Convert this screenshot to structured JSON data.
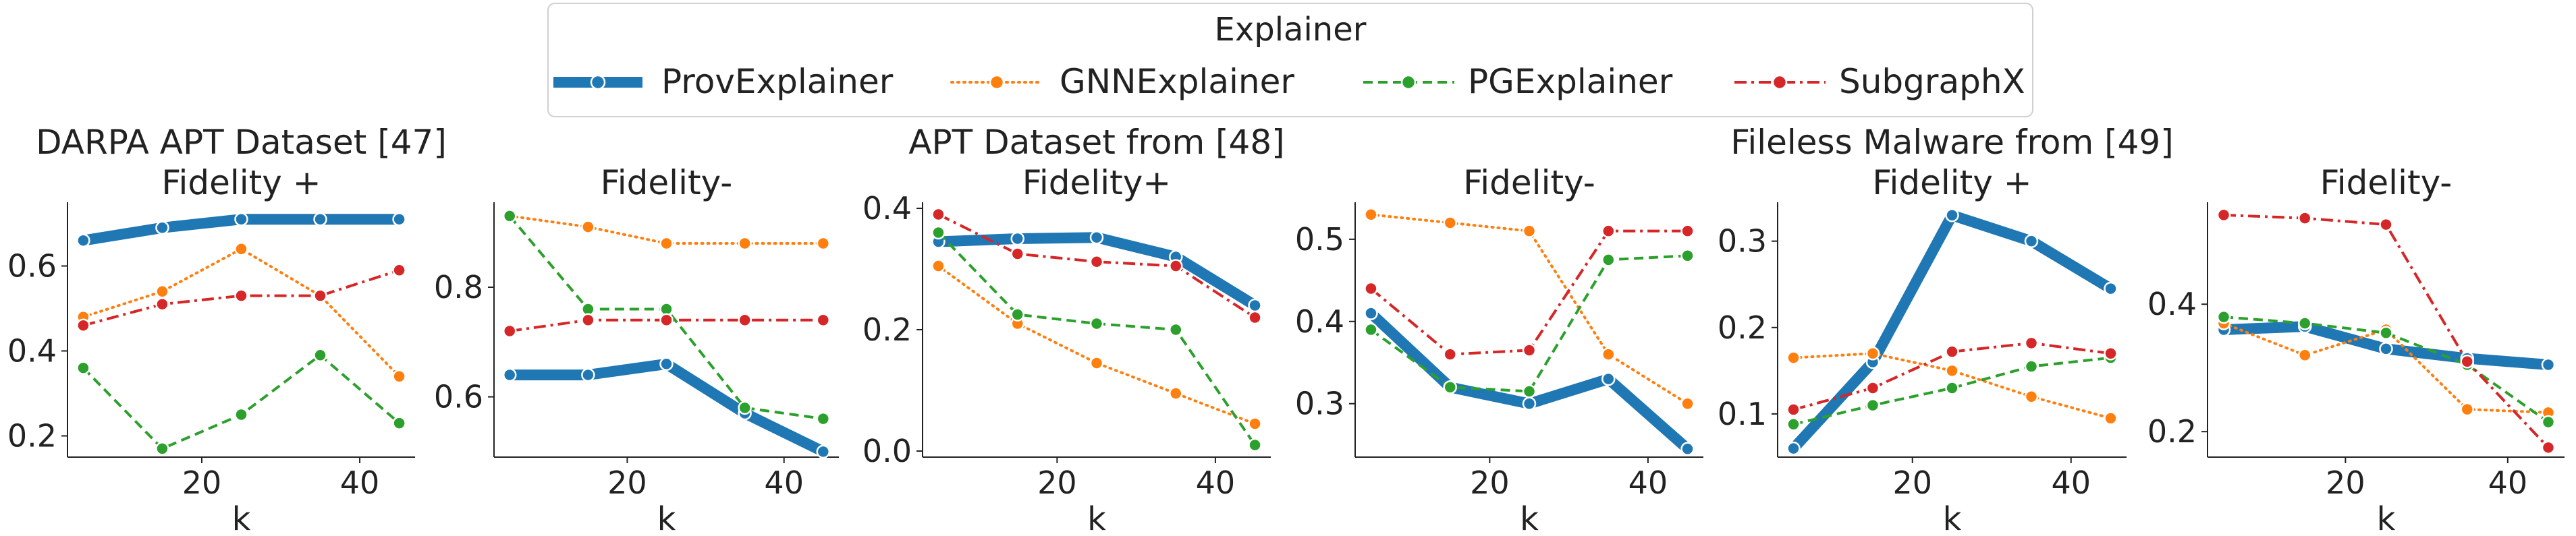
{
  "legend": {
    "title": "Explainer",
    "entries": [
      "ProvExplainer",
      "GNNExplainer",
      "PGExplainer",
      "SubgraphX"
    ]
  },
  "colors": {
    "ProvExplainer": "#1f77b4",
    "GNNExplainer": "#ff7f0e",
    "PGExplainer": "#2ca02c",
    "SubgraphX": "#d62728"
  },
  "chart_data": [
    {
      "type": "line",
      "title": "DARPA APT Dataset [47]\nFidelity +",
      "xlabel": "k",
      "ylabel": "",
      "x": [
        5,
        15,
        25,
        35,
        45
      ],
      "xlim": [
        3,
        47
      ],
      "ylim": [
        0.15,
        0.75
      ],
      "xticks": [
        20,
        40
      ],
      "yticks": [
        0.2,
        0.4,
        0.6
      ],
      "ytick_labels": [
        "0.2",
        "0.4",
        "0.6"
      ],
      "series": [
        {
          "name": "ProvExplainer",
          "values": [
            0.66,
            0.69,
            0.71,
            0.71,
            0.71
          ]
        },
        {
          "name": "GNNExplainer",
          "values": [
            0.48,
            0.54,
            0.64,
            0.53,
            0.34
          ]
        },
        {
          "name": "PGExplainer",
          "values": [
            0.36,
            0.17,
            0.25,
            0.39,
            0.23
          ]
        },
        {
          "name": "SubgraphX",
          "values": [
            0.46,
            0.51,
            0.53,
            0.53,
            0.59
          ]
        }
      ]
    },
    {
      "type": "line",
      "title": "Fidelity-",
      "xlabel": "k",
      "ylabel": "",
      "x": [
        5,
        15,
        25,
        35,
        45
      ],
      "xlim": [
        3,
        47
      ],
      "ylim": [
        0.49,
        0.955
      ],
      "xticks": [
        20,
        40
      ],
      "yticks": [
        0.6,
        0.8
      ],
      "ytick_labels": [
        "0.6",
        "0.8"
      ],
      "series": [
        {
          "name": "ProvExplainer",
          "values": [
            0.64,
            0.64,
            0.66,
            0.57,
            0.5
          ]
        },
        {
          "name": "GNNExplainer",
          "values": [
            0.93,
            0.91,
            0.88,
            0.88,
            0.88
          ]
        },
        {
          "name": "PGExplainer",
          "values": [
            0.93,
            0.76,
            0.76,
            0.58,
            0.56
          ]
        },
        {
          "name": "SubgraphX",
          "values": [
            0.72,
            0.74,
            0.74,
            0.74,
            0.74
          ]
        }
      ]
    },
    {
      "type": "line",
      "title": "APT Dataset from [48]\nFidelity+",
      "xlabel": "k",
      "ylabel": "",
      "x": [
        5,
        15,
        25,
        35,
        45
      ],
      "xlim": [
        3,
        47
      ],
      "ylim": [
        -0.01,
        0.41
      ],
      "xticks": [
        20,
        40
      ],
      "yticks": [
        0.0,
        0.2,
        0.4
      ],
      "ytick_labels": [
        "0.0",
        "0.2",
        "0.4"
      ],
      "series": [
        {
          "name": "ProvExplainer",
          "values": [
            0.345,
            0.35,
            0.352,
            0.32,
            0.24
          ]
        },
        {
          "name": "GNNExplainer",
          "values": [
            0.305,
            0.21,
            0.145,
            0.095,
            0.045
          ]
        },
        {
          "name": "PGExplainer",
          "values": [
            0.36,
            0.225,
            0.21,
            0.2,
            0.01
          ]
        },
        {
          "name": "SubgraphX",
          "values": [
            0.39,
            0.325,
            0.312,
            0.305,
            0.22
          ]
        }
      ]
    },
    {
      "type": "line",
      "title": "Fidelity-",
      "xlabel": "k",
      "ylabel": "",
      "x": [
        5,
        15,
        25,
        35,
        45
      ],
      "xlim": [
        3,
        47
      ],
      "ylim": [
        0.235,
        0.545
      ],
      "xticks": [
        20,
        40
      ],
      "yticks": [
        0.3,
        0.4,
        0.5
      ],
      "ytick_labels": [
        "0.3",
        "0.4",
        "0.5"
      ],
      "series": [
        {
          "name": "ProvExplainer",
          "values": [
            0.41,
            0.32,
            0.3,
            0.33,
            0.245
          ]
        },
        {
          "name": "GNNExplainer",
          "values": [
            0.53,
            0.52,
            0.51,
            0.36,
            0.3
          ]
        },
        {
          "name": "PGExplainer",
          "values": [
            0.39,
            0.32,
            0.315,
            0.475,
            0.48
          ]
        },
        {
          "name": "SubgraphX",
          "values": [
            0.44,
            0.36,
            0.365,
            0.51,
            0.51
          ]
        }
      ]
    },
    {
      "type": "line",
      "title": "Fileless Malware from [49]\nFidelity +",
      "xlabel": "k",
      "ylabel": "",
      "x": [
        5,
        15,
        25,
        35,
        45
      ],
      "xlim": [
        3,
        47
      ],
      "ylim": [
        0.05,
        0.345
      ],
      "xticks": [
        20,
        40
      ],
      "yticks": [
        0.1,
        0.2,
        0.3
      ],
      "ytick_labels": [
        "0.1",
        "0.2",
        "0.3"
      ],
      "series": [
        {
          "name": "ProvExplainer",
          "values": [
            0.06,
            0.16,
            0.33,
            0.3,
            0.245
          ]
        },
        {
          "name": "GNNExplainer",
          "values": [
            0.165,
            0.17,
            0.15,
            0.12,
            0.095
          ]
        },
        {
          "name": "PGExplainer",
          "values": [
            0.088,
            0.11,
            0.13,
            0.155,
            0.165
          ]
        },
        {
          "name": "SubgraphX",
          "values": [
            0.105,
            0.13,
            0.172,
            0.182,
            0.17
          ]
        }
      ]
    },
    {
      "type": "line",
      "title": "Fidelity-",
      "xlabel": "k",
      "ylabel": "",
      "x": [
        5,
        15,
        25,
        35,
        45
      ],
      "xlim": [
        3,
        47
      ],
      "ylim": [
        0.16,
        0.56
      ],
      "xticks": [
        20,
        40
      ],
      "yticks": [
        0.2,
        0.4
      ],
      "ytick_labels": [
        "0.2",
        "0.4"
      ],
      "series": [
        {
          "name": "ProvExplainer",
          "values": [
            0.36,
            0.365,
            0.33,
            0.315,
            0.305
          ]
        },
        {
          "name": "GNNExplainer",
          "values": [
            0.37,
            0.32,
            0.36,
            0.235,
            0.23
          ]
        },
        {
          "name": "PGExplainer",
          "values": [
            0.38,
            0.37,
            0.355,
            0.305,
            0.215
          ]
        },
        {
          "name": "SubgraphX",
          "values": [
            0.54,
            0.535,
            0.525,
            0.31,
            0.175
          ]
        }
      ]
    }
  ]
}
